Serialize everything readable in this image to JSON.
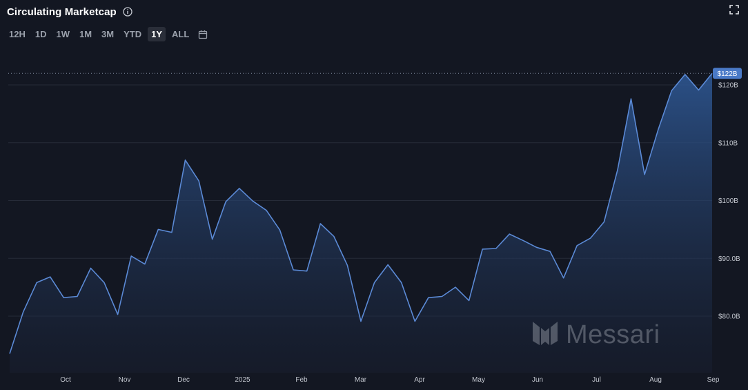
{
  "header": {
    "title": "Circulating Marketcap",
    "info_icon": "info-icon",
    "expand_icon": "expand-icon"
  },
  "ranges": [
    "12H",
    "1D",
    "1W",
    "1M",
    "3M",
    "YTD",
    "1Y",
    "ALL"
  ],
  "active_range": "1Y",
  "calendar_icon": "calendar-icon",
  "watermark": {
    "text": "Messari",
    "icon": "messari-logo-icon"
  },
  "colors": {
    "background": "#131722",
    "line": "#5b8ad6",
    "label_bg": "#4a7ac7",
    "grid": "#2a2e39"
  },
  "chart_data": {
    "type": "area",
    "ylabel": "",
    "xlabel": "",
    "ylim": [
      72,
      125
    ],
    "y_ticks": [
      80,
      90,
      100,
      110,
      120
    ],
    "y_tick_labels": [
      "$80.0B",
      "$90.0B",
      "$100B",
      "$110B",
      "$120B"
    ],
    "x_tick_labels": [
      "Oct",
      "Nov",
      "Dec",
      "2025",
      "Feb",
      "Mar",
      "Apr",
      "May",
      "Jun",
      "Jul",
      "Aug",
      "Sep"
    ],
    "last_value_label": "$122B",
    "series": [
      {
        "values": [
          73.5,
          80.7,
          85.8,
          86.8,
          83.2,
          83.4,
          88.3,
          85.8,
          80.3,
          90.4,
          89.0,
          95.0,
          94.5,
          107.0,
          103.4,
          93.3,
          99.8,
          102.1,
          99.9,
          98.3,
          94.9,
          88.0,
          87.8,
          96.0,
          93.8,
          88.8,
          79.1,
          85.8,
          88.9,
          85.8,
          79.1,
          83.2,
          83.4,
          85.0,
          82.7,
          91.6,
          91.7,
          94.2,
          93.1,
          91.9,
          91.2,
          86.6,
          92.2,
          93.5,
          96.3,
          105.3,
          117.6,
          104.5,
          112.2,
          119.0,
          121.8,
          119.1,
          122.0
        ]
      }
    ]
  }
}
